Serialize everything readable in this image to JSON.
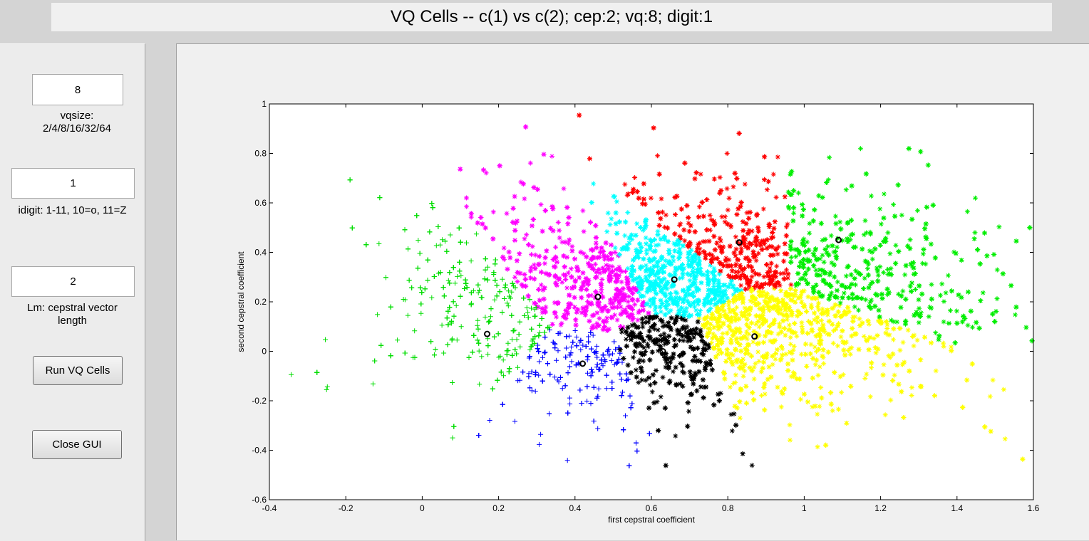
{
  "title": "VQ Cells -- c(1) vs c(2); cep:2; vq:8; digit:1",
  "controls": {
    "vqsize_value": "8",
    "vqsize_label_line1": "vqsize:",
    "vqsize_label_line2": "2/4/8/16/32/64",
    "digit_value": "1",
    "digit_label": "idigit: 1-11, 10=o, 11=Z",
    "lm_value": "2",
    "lm_label_line1": "Lm: cepstral vector",
    "lm_label_line2": "length",
    "run_button": "Run VQ Cells",
    "close_button": "Close GUI"
  },
  "chart_data": {
    "type": "scatter",
    "title": "",
    "xlabel": "first cepstral coefficient",
    "ylabel": "second cepstral coefficient",
    "xlim": [
      -0.4,
      1.6
    ],
    "ylim": [
      -0.6,
      1.0
    ],
    "xticks": [
      "-0.4",
      "-0.2",
      "0",
      "0.2",
      "0.4",
      "0.6",
      "0.8",
      "1",
      "1.2",
      "1.4",
      "1.6"
    ],
    "yticks": [
      "-0.6",
      "-0.4",
      "-0.2",
      "0",
      "0.2",
      "0.4",
      "0.6",
      "0.8",
      "1"
    ],
    "grid": false,
    "clusters": [
      {
        "color": "#00dd00",
        "marker": "+",
        "centroid": [
          0.17,
          0.07
        ]
      },
      {
        "color": "#ff00ff",
        "marker": "*",
        "centroid": [
          0.46,
          0.22
        ]
      },
      {
        "color": "#0000ff",
        "marker": "+",
        "centroid": [
          0.42,
          -0.05
        ]
      },
      {
        "color": "#00ffff",
        "marker": "*",
        "centroid": [
          0.66,
          0.29
        ]
      },
      {
        "color": "#000000",
        "marker": "*",
        "centroid": [
          0.63,
          0.0
        ]
      },
      {
        "color": "#ff0000",
        "marker": "*",
        "centroid": [
          0.83,
          0.44
        ]
      },
      {
        "color": "#ffff00",
        "marker": "*",
        "centroid": [
          0.87,
          0.06
        ]
      },
      {
        "color": "#00ee00",
        "marker": "*",
        "centroid": [
          1.09,
          0.45
        ]
      }
    ]
  }
}
